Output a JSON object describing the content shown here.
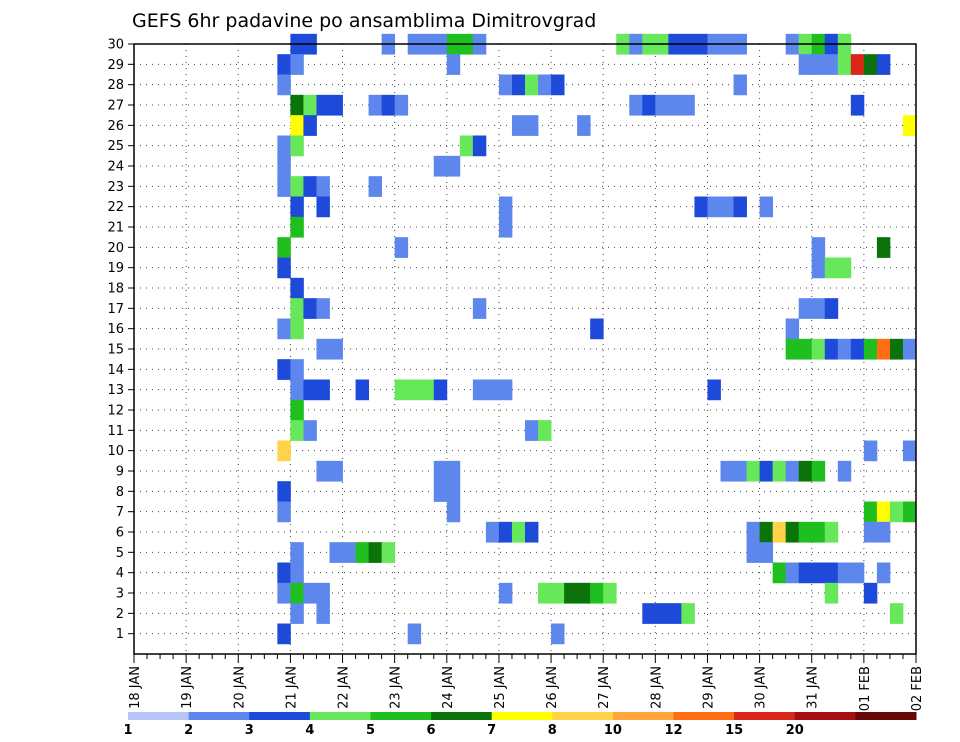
{
  "chart_data": {
    "type": "heatmap",
    "title": "GEFS 6hr padavine po ansamblima Dimitrovgrad",
    "x_tick_labels": [
      "18 JAN",
      "19 JAN",
      "20 JAN",
      "21 JAN",
      "22 JAN",
      "23 JAN",
      "24 JAN",
      "25 JAN",
      "26 JAN",
      "27 JAN",
      "28 JAN",
      "29 JAN",
      "30 JAN",
      "31 JAN",
      "01 FEB",
      "02 FEB"
    ],
    "y_tick_labels": [
      "1",
      "2",
      "3",
      "4",
      "5",
      "6",
      "7",
      "8",
      "9",
      "10",
      "11",
      "12",
      "13",
      "14",
      "15",
      "16",
      "17",
      "18",
      "19",
      "20",
      "21",
      "22",
      "23",
      "24",
      "25",
      "26",
      "27",
      "28",
      "29",
      "30"
    ],
    "x_range_steps": [
      0,
      60
    ],
    "y_range": [
      0,
      30
    ],
    "grid": true,
    "legend_position": "bottom",
    "legend": {
      "labels": [
        "1",
        "2",
        "3",
        "4",
        "5",
        "6",
        "7",
        "8",
        "10",
        "12",
        "15",
        "20"
      ],
      "colors": [
        "#b7c6f7",
        "#5e87ee",
        "#1d4ad9",
        "#67e85a",
        "#1fbf1f",
        "#0a740a",
        "#ffff00",
        "#ffd24a",
        "#ffa53b",
        "#ff6e14",
        "#d9261b",
        "#a50f0f",
        "#6a0808"
      ]
    },
    "cells": [
      {
        "y": 30,
        "x": [
          [
            12,
            14,
            2
          ],
          [
            19,
            1
          ],
          [
            21,
            24,
            1
          ],
          [
            24,
            26,
            4
          ],
          [
            26,
            1
          ],
          [
            37,
            3
          ],
          [
            38,
            1
          ],
          [
            39,
            41,
            3
          ],
          [
            41,
            44,
            2
          ],
          [
            44,
            47,
            1
          ],
          [
            50,
            1
          ],
          [
            51,
            3
          ],
          [
            52,
            4
          ],
          [
            53,
            2
          ],
          [
            54,
            3
          ]
        ]
      },
      {
        "y": 29,
        "x": [
          [
            11,
            2
          ],
          [
            12,
            1
          ],
          [
            24,
            1
          ],
          [
            51,
            1
          ],
          [
            52,
            54,
            1
          ],
          [
            54,
            3
          ],
          [
            55,
            10
          ],
          [
            56,
            5
          ],
          [
            57,
            2
          ]
        ]
      },
      {
        "y": 28,
        "x": [
          [
            11,
            1
          ],
          [
            28,
            1
          ],
          [
            29,
            2
          ],
          [
            30,
            3
          ],
          [
            31,
            1
          ],
          [
            32,
            2
          ],
          [
            46,
            1
          ]
        ]
      },
      {
        "y": 27,
        "x": [
          [
            12,
            5
          ],
          [
            13,
            3
          ],
          [
            14,
            16,
            2
          ],
          [
            18,
            1
          ],
          [
            19,
            2
          ],
          [
            20,
            1
          ],
          [
            38,
            1
          ],
          [
            39,
            2
          ],
          [
            40,
            43,
            1
          ],
          [
            55,
            2
          ]
        ]
      },
      {
        "y": 26,
        "x": [
          [
            12,
            6
          ],
          [
            13,
            2
          ],
          [
            29,
            31,
            1
          ],
          [
            34,
            1
          ],
          [
            59,
            6
          ]
        ]
      },
      {
        "y": 25,
        "x": [
          [
            11,
            1
          ],
          [
            12,
            3
          ],
          [
            25,
            3
          ],
          [
            26,
            2
          ]
        ]
      },
      {
        "y": 24,
        "x": [
          [
            11,
            1
          ],
          [
            23,
            25,
            1
          ]
        ]
      },
      {
        "y": 23,
        "x": [
          [
            11,
            1
          ],
          [
            12,
            3
          ],
          [
            13,
            2
          ],
          [
            14,
            1
          ],
          [
            18,
            1
          ]
        ]
      },
      {
        "y": 22,
        "x": [
          [
            12,
            2
          ],
          [
            14,
            2
          ],
          [
            28,
            1
          ],
          [
            43,
            2
          ],
          [
            44,
            1
          ],
          [
            45,
            1
          ],
          [
            46,
            2
          ],
          [
            48,
            1
          ]
        ]
      },
      {
        "y": 21,
        "x": [
          [
            12,
            4
          ],
          [
            28,
            1
          ]
        ]
      },
      {
        "y": 20,
        "x": [
          [
            11,
            4
          ],
          [
            20,
            1
          ],
          [
            52,
            1
          ],
          [
            57,
            5
          ]
        ]
      },
      {
        "y": 19,
        "x": [
          [
            11,
            2
          ],
          [
            52,
            1
          ],
          [
            53,
            3
          ],
          [
            54,
            3
          ]
        ]
      },
      {
        "y": 18,
        "x": [
          [
            12,
            2
          ]
        ]
      },
      {
        "y": 17,
        "x": [
          [
            12,
            3
          ],
          [
            13,
            2
          ],
          [
            14,
            1
          ],
          [
            26,
            1
          ],
          [
            51,
            53,
            1
          ],
          [
            53,
            2
          ]
        ]
      },
      {
        "y": 16,
        "x": [
          [
            11,
            1
          ],
          [
            12,
            3
          ],
          [
            35,
            2
          ],
          [
            50,
            1
          ]
        ]
      },
      {
        "y": 15,
        "x": [
          [
            14,
            16,
            1
          ],
          [
            50,
            52,
            4
          ],
          [
            52,
            3
          ],
          [
            53,
            2
          ],
          [
            54,
            1
          ],
          [
            55,
            2
          ],
          [
            56,
            4
          ],
          [
            57,
            9
          ],
          [
            58,
            5
          ],
          [
            59,
            1
          ]
        ]
      },
      {
        "y": 14,
        "x": [
          [
            11,
            2
          ],
          [
            12,
            1
          ]
        ]
      },
      {
        "y": 13,
        "x": [
          [
            12,
            1
          ],
          [
            13,
            15,
            2
          ],
          [
            17,
            2
          ],
          [
            20,
            23,
            3
          ],
          [
            23,
            2
          ],
          [
            26,
            29,
            1
          ],
          [
            44,
            2
          ]
        ]
      },
      {
        "y": 12,
        "x": [
          [
            12,
            4
          ]
        ]
      },
      {
        "y": 11,
        "x": [
          [
            12,
            3
          ],
          [
            13,
            1
          ],
          [
            30,
            1
          ],
          [
            31,
            3
          ]
        ]
      },
      {
        "y": 10,
        "x": [
          [
            11,
            7
          ],
          [
            56,
            1
          ],
          [
            59,
            1
          ]
        ]
      },
      {
        "y": 9,
        "x": [
          [
            14,
            16,
            1
          ],
          [
            23,
            25,
            1
          ],
          [
            45,
            47,
            1
          ],
          [
            47,
            3
          ],
          [
            48,
            2
          ],
          [
            49,
            3
          ],
          [
            50,
            1
          ],
          [
            51,
            5
          ],
          [
            52,
            53,
            4
          ],
          [
            54,
            1
          ]
        ]
      },
      {
        "y": 8,
        "x": [
          [
            11,
            2
          ],
          [
            23,
            25,
            1
          ]
        ]
      },
      {
        "y": 7,
        "x": [
          [
            11,
            1
          ],
          [
            24,
            1
          ],
          [
            56,
            57,
            4
          ],
          [
            57,
            6
          ],
          [
            58,
            3
          ],
          [
            59,
            4
          ]
        ]
      },
      {
        "y": 6,
        "x": [
          [
            27,
            1
          ],
          [
            28,
            2
          ],
          [
            29,
            3
          ],
          [
            30,
            2
          ],
          [
            47,
            1
          ],
          [
            48,
            5
          ],
          [
            49,
            7
          ],
          [
            50,
            5
          ],
          [
            51,
            53,
            4
          ],
          [
            53,
            3
          ],
          [
            56,
            58,
            1
          ]
        ]
      },
      {
        "y": 5,
        "x": [
          [
            12,
            1
          ],
          [
            15,
            17,
            1
          ],
          [
            17,
            4
          ],
          [
            18,
            5
          ],
          [
            19,
            3
          ],
          [
            47,
            49,
            1
          ]
        ]
      },
      {
        "y": 4,
        "x": [
          [
            11,
            2
          ],
          [
            12,
            1
          ],
          [
            49,
            4
          ],
          [
            50,
            1
          ],
          [
            51,
            54,
            2
          ],
          [
            54,
            56,
            1
          ],
          [
            57,
            1
          ]
        ]
      },
      {
        "y": 3,
        "x": [
          [
            11,
            1
          ],
          [
            12,
            4
          ],
          [
            13,
            15,
            1
          ],
          [
            28,
            1
          ],
          [
            31,
            33,
            3
          ],
          [
            33,
            5
          ],
          [
            34,
            5
          ],
          [
            35,
            4
          ],
          [
            36,
            3
          ],
          [
            53,
            3
          ],
          [
            56,
            2
          ]
        ]
      },
      {
        "y": 2,
        "x": [
          [
            12,
            1
          ],
          [
            14,
            1
          ],
          [
            39,
            42,
            2
          ],
          [
            42,
            3
          ],
          [
            58,
            3
          ]
        ]
      },
      {
        "y": 1,
        "x": [
          [
            11,
            2
          ],
          [
            21,
            1
          ],
          [
            32,
            1
          ]
        ]
      }
    ]
  }
}
